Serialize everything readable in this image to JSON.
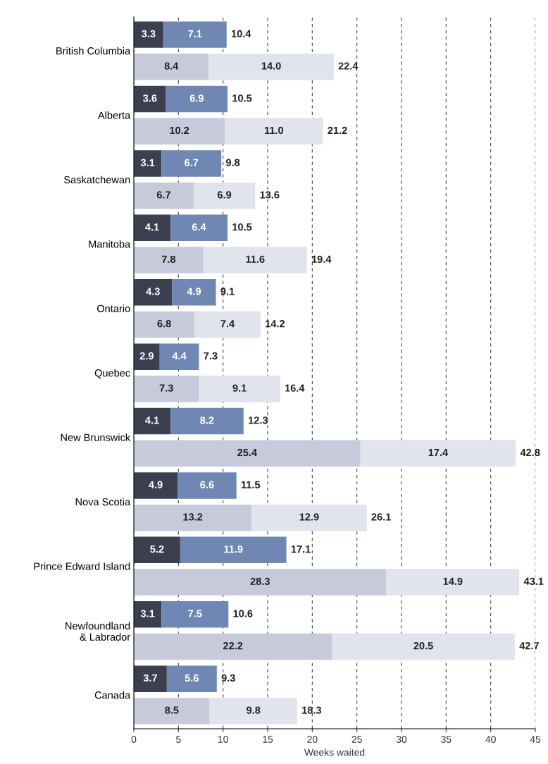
{
  "chart_data": {
    "type": "bar",
    "orientation": "horizontal",
    "stacked": true,
    "xlabel": "Weeks waited",
    "categories": [
      "British Columbia",
      null,
      "Alberta",
      null,
      "Saskatchewan",
      null,
      "Manitoba",
      null,
      "Ontario",
      null,
      "Quebec",
      null,
      "New Brunswick",
      null,
      "Nova Scotia",
      null,
      "Prince Edward Island",
      null,
      "Newfoundland\n& Labrador",
      null,
      "Canada",
      null
    ],
    "series": [
      {
        "color": "#3b3f4f",
        "values": [
          3.3,
          null,
          3.6,
          null,
          3.1,
          null,
          4.1,
          null,
          4.3,
          null,
          2.9,
          null,
          4.1,
          null,
          4.9,
          null,
          5.2,
          null,
          3.1,
          null,
          3.7,
          null
        ]
      },
      {
        "color": "#6f87b2",
        "values": [
          7.1,
          null,
          6.9,
          null,
          6.7,
          null,
          6.4,
          null,
          4.9,
          null,
          4.4,
          null,
          8.2,
          null,
          6.6,
          null,
          11.9,
          null,
          7.5,
          null,
          5.6,
          null
        ]
      },
      {
        "color": "#c6cadb",
        "values": [
          null,
          8.4,
          null,
          10.2,
          null,
          6.7,
          null,
          7.8,
          null,
          6.8,
          null,
          7.3,
          null,
          25.4,
          null,
          13.2,
          null,
          28.3,
          null,
          22.2,
          null,
          8.5
        ]
      },
      {
        "color": "#e1e3ed",
        "values": [
          null,
          14.0,
          null,
          11.0,
          null,
          6.9,
          null,
          11.6,
          null,
          7.4,
          null,
          9.1,
          null,
          17.4,
          null,
          12.9,
          null,
          14.9,
          null,
          20.5,
          null,
          9.8
        ],
        "value_labels": [
          null,
          "14.0",
          null,
          "11.0",
          null,
          "6.9",
          null,
          "11.6",
          null,
          "7.4",
          null,
          "9.1",
          null,
          "17.4",
          null,
          "12.9",
          null,
          "14.9",
          null,
          "20.5",
          null,
          "9.8"
        ]
      }
    ],
    "data_labels": true,
    "totals": [
      "10.4",
      "22.4",
      "10.5",
      "21.2",
      "9.8",
      "13.6",
      "10.5",
      "19.4",
      "9.1",
      "14.2",
      "7.3",
      "16.4",
      "12.3",
      "42.8",
      "11.5",
      "26.1",
      "17.1",
      "43.1",
      "10.6",
      "42.7",
      "9.3",
      "18.3"
    ],
    "xlim": [
      0,
      45
    ],
    "xticks": [
      0,
      5,
      10,
      15,
      20,
      25,
      30,
      35,
      40,
      45
    ],
    "grid": "x",
    "legend": false
  }
}
